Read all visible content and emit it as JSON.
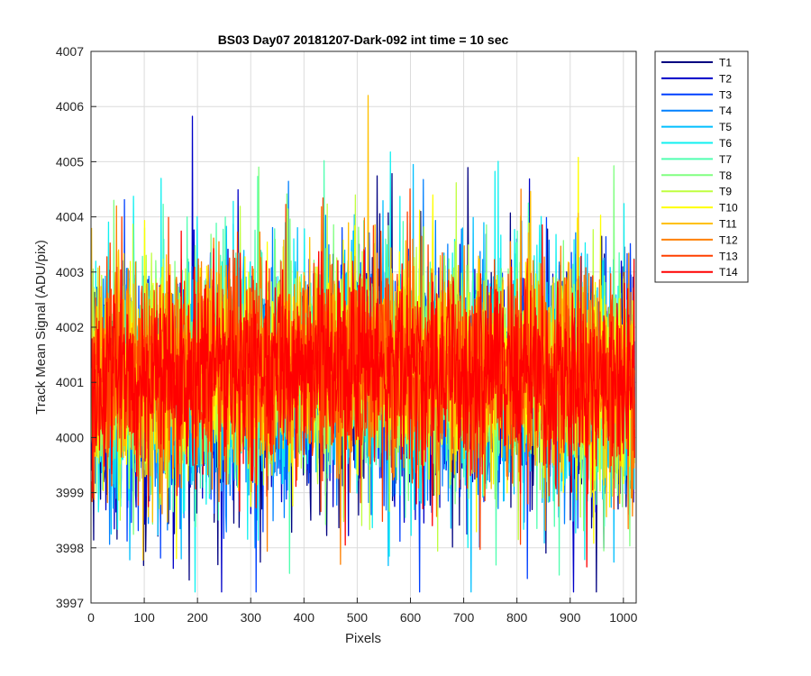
{
  "chart_data": {
    "type": "line",
    "title": "BS03 Day07 20181207-Dark-092 int time = 10 sec",
    "xlabel": "Pixels",
    "ylabel": "Track Mean Signal (ADU/pix)",
    "xlim": [
      0,
      1024
    ],
    "ylim": [
      3997,
      4007
    ],
    "xticks": [
      "0",
      "100",
      "200",
      "300",
      "400",
      "500",
      "600",
      "700",
      "800",
      "900",
      "1000"
    ],
    "yticks": [
      "3997",
      "3998",
      "3999",
      "4000",
      "4001",
      "4002",
      "4003",
      "4004",
      "4005",
      "4006",
      "4007"
    ],
    "grid": true,
    "legend_position": "outside-top-right",
    "n_points": 1024,
    "series": [
      {
        "name": "T1",
        "color": "#000080",
        "center": 4001.0,
        "spread": 1.8
      },
      {
        "name": "T2",
        "color": "#0000c8",
        "center": 4001.0,
        "spread": 1.8
      },
      {
        "name": "T3",
        "color": "#0040ff",
        "center": 4001.1,
        "spread": 1.7
      },
      {
        "name": "T4",
        "color": "#0080ff",
        "center": 4001.1,
        "spread": 1.7
      },
      {
        "name": "T5",
        "color": "#00bfff",
        "center": 4001.2,
        "spread": 1.7
      },
      {
        "name": "T6",
        "color": "#10f0f0",
        "center": 4001.2,
        "spread": 1.7
      },
      {
        "name": "T7",
        "color": "#50ffb0",
        "center": 4001.3,
        "spread": 1.6
      },
      {
        "name": "T8",
        "color": "#80ff80",
        "center": 4001.3,
        "spread": 1.6
      },
      {
        "name": "T9",
        "color": "#c0ff40",
        "center": 4001.3,
        "spread": 1.6
      },
      {
        "name": "T10",
        "color": "#ffff00",
        "center": 4001.3,
        "spread": 1.6
      },
      {
        "name": "T11",
        "color": "#ffc000",
        "center": 4001.3,
        "spread": 1.6
      },
      {
        "name": "T12",
        "color": "#ff8000",
        "center": 4001.3,
        "spread": 1.6
      },
      {
        "name": "T13",
        "color": "#ff4000",
        "center": 4001.3,
        "spread": 1.6
      },
      {
        "name": "T14",
        "color": "#ff0000",
        "center": 4001.3,
        "spread": 1.5
      }
    ]
  }
}
